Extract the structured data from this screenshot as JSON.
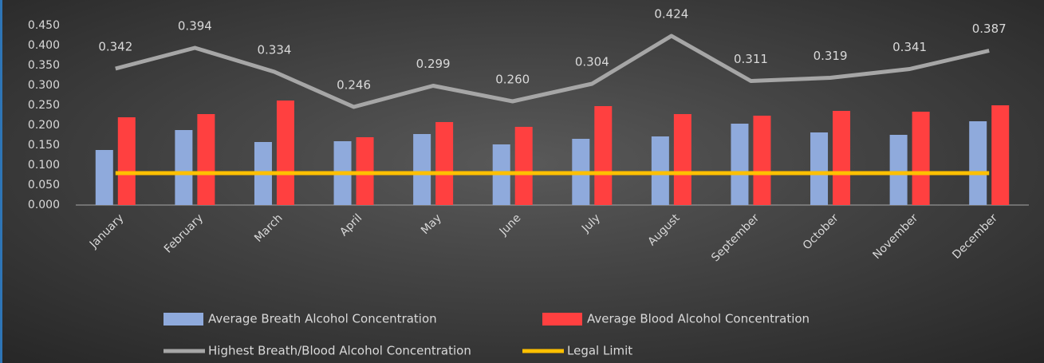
{
  "chart_data": {
    "type": "bar",
    "categories": [
      "January",
      "February",
      "March",
      "April",
      "May",
      "June",
      "July",
      "August",
      "September",
      "October",
      "November",
      "December"
    ],
    "ylim": [
      0,
      0.45
    ],
    "yticks": [
      {
        "value": 0,
        "label": "0.000"
      },
      {
        "value": 0.05,
        "label": "0.050"
      },
      {
        "value": 0.1,
        "label": "0.100"
      },
      {
        "value": 0.15,
        "label": "0.150"
      },
      {
        "value": 0.2,
        "label": "0.200"
      },
      {
        "value": 0.25,
        "label": "0.250"
      },
      {
        "value": 0.3,
        "label": "0.300"
      },
      {
        "value": 0.35,
        "label": "0.350"
      },
      {
        "value": 0.4,
        "label": "0.400"
      },
      {
        "value": 0.45,
        "label": "0.450"
      }
    ],
    "series": [
      {
        "name": "Average Breath Alcohol Concentration",
        "type": "bar",
        "color": "#8faadc",
        "values": [
          0.138,
          0.188,
          0.158,
          0.16,
          0.178,
          0.152,
          0.166,
          0.172,
          0.204,
          0.182,
          0.176,
          0.21
        ]
      },
      {
        "name": "Average Blood Alcohol Concentration",
        "type": "bar",
        "color": "#ff4040",
        "values": [
          0.22,
          0.228,
          0.262,
          0.17,
          0.208,
          0.196,
          0.248,
          0.228,
          0.224,
          0.236,
          0.234,
          0.25
        ]
      },
      {
        "name": "Highest Breath/Blood Alcohol Concentration",
        "type": "line",
        "color": "#a6a6a6",
        "values": [
          0.342,
          0.394,
          0.334,
          0.246,
          0.299,
          0.26,
          0.304,
          0.424,
          0.311,
          0.319,
          0.341,
          0.387
        ],
        "value_labels": [
          "0.342",
          "0.394",
          "0.334",
          "0.246",
          "0.299",
          "0.260",
          "0.304",
          "0.424",
          "0.311",
          "0.319",
          "0.341",
          "0.387"
        ]
      },
      {
        "name": "Legal Limit",
        "type": "line",
        "color": "#ffc000",
        "values": [
          0.08,
          0.08,
          0.08,
          0.08,
          0.08,
          0.08,
          0.08,
          0.08,
          0.08,
          0.08,
          0.08,
          0.08
        ]
      }
    ]
  }
}
